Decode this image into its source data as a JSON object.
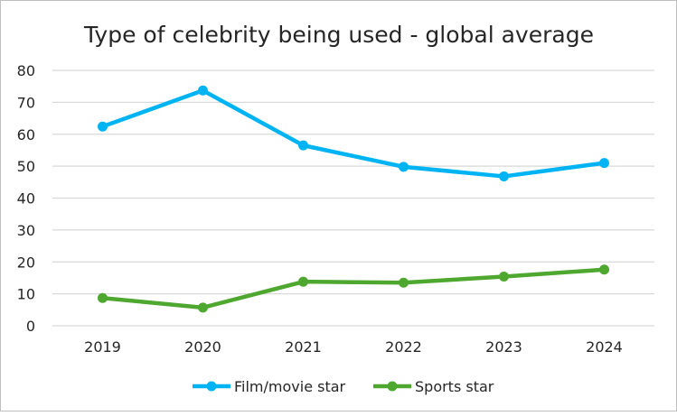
{
  "chart_data": {
    "type": "line",
    "title": "Type of celebrity being used - global average",
    "categories": [
      "2019",
      "2020",
      "2021",
      "2022",
      "2023",
      "2024"
    ],
    "ylim": [
      0,
      80
    ],
    "yticks": [
      0,
      10,
      20,
      30,
      40,
      50,
      60,
      70,
      80
    ],
    "grid": true,
    "legend_position": "bottom",
    "series": [
      {
        "name": "Film/movie star",
        "color": "#00b4f4",
        "values": [
          62.4,
          73.7,
          56.5,
          49.8,
          46.8,
          51.0
        ]
      },
      {
        "name": "Sports star",
        "color": "#4ea72e",
        "values": [
          8.7,
          5.7,
          13.8,
          13.5,
          15.4,
          17.6
        ]
      }
    ]
  }
}
